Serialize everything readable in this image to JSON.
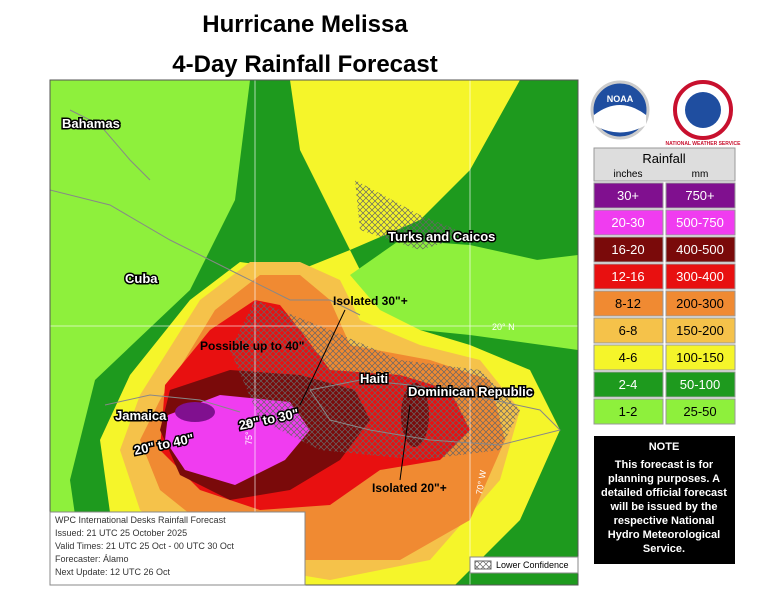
{
  "title": [
    "Hurricane Melissa",
    "4-Day Rainfall Forecast"
  ],
  "logos": [
    "NOAA",
    "NATIONAL WEATHER SERVICE"
  ],
  "map_labels": {
    "bahamas": "Bahamas",
    "cuba": "Cuba",
    "turks": "Turks and Caicos",
    "isolated30": "Isolated 30\"+",
    "possible40": "Possible up to 40\"",
    "haiti": "Haiti",
    "dominican": "Dominican Republic",
    "jamaica": "Jamaica",
    "range1": "20\" to 40\"",
    "range2": "20\" to 30\"",
    "isolated20": "Isolated 20\"+"
  },
  "grid_labels": [
    "20° N",
    "75° W",
    "70° W"
  ],
  "legend": {
    "title": "Rainfall",
    "units": [
      "inches",
      "mm"
    ],
    "rows": [
      {
        "inches": "30+",
        "mm": "750+",
        "color": "#80108f"
      },
      {
        "inches": "20-30",
        "mm": "500-750",
        "color": "#f03cf0"
      },
      {
        "inches": "16-20",
        "mm": "400-500",
        "color": "#7a0a0a"
      },
      {
        "inches": "12-16",
        "mm": "300-400",
        "color": "#e81010"
      },
      {
        "inches": "8-12",
        "mm": "200-300",
        "color": "#f08a32"
      },
      {
        "inches": "6-8",
        "mm": "150-200",
        "color": "#f5c24a"
      },
      {
        "inches": "4-6",
        "mm": "100-150",
        "color": "#f5f52a"
      },
      {
        "inches": "2-4",
        "mm": "50-100",
        "color": "#1e9a1e"
      },
      {
        "inches": "1-2",
        "mm": "25-50",
        "color": "#8ef03c"
      }
    ]
  },
  "note": {
    "title": "NOTE",
    "text": "This forecast is for planning purposes. A detailed official forecast will be issued by the respective National Hydro Meteorological Service."
  },
  "info": [
    "WPC International Desks Rainfall Forecast",
    "Issued: 21 UTC 25 October 2025",
    "Valid Times: 21 UTC 25 Oct - 00 UTC 30 Oct",
    "Forecaster: Álamo",
    "Next Update: 12 UTC 26 Oct"
  ],
  "hatch_legend": "Lower Confidence"
}
